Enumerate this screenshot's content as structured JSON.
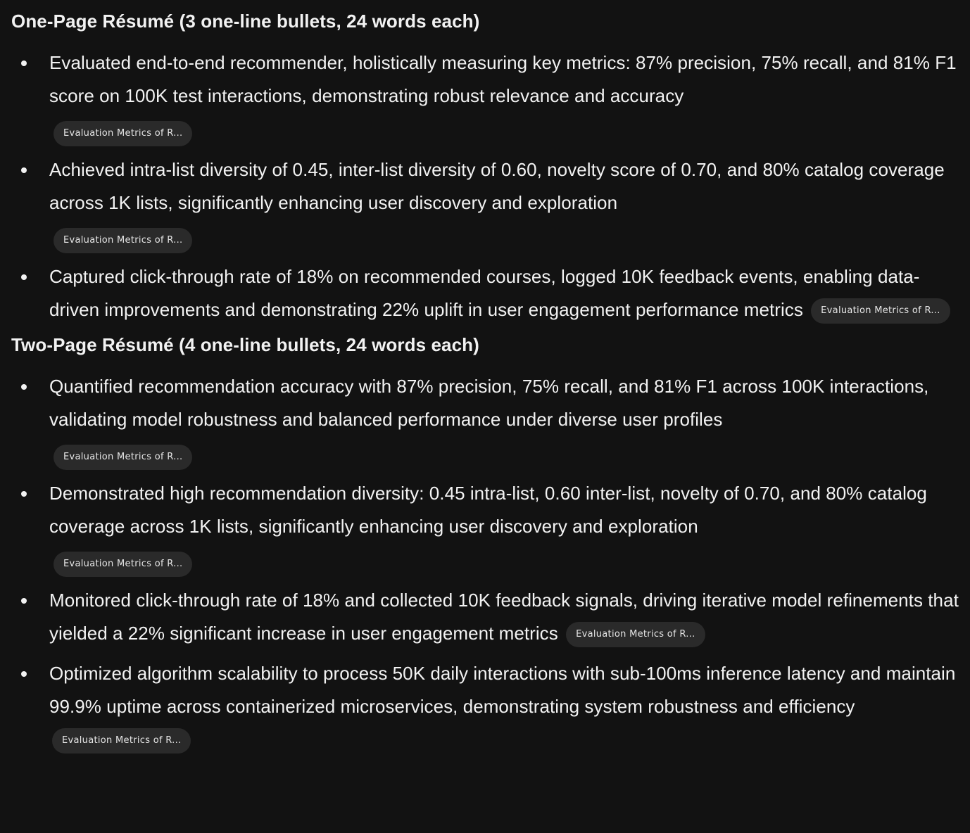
{
  "sections": [
    {
      "heading": "One-Page Résumé (3 one-line bullets, 24 words each)",
      "bullets": [
        {
          "text": "Evaluated end-to-end recommender, holistically measuring key metrics: 87% precision, 75% recall, and 81% F1 score on 100K test interactions, demonstrating robust relevance and accuracy",
          "chip": "Evaluation Metrics of R..."
        },
        {
          "text": "Achieved intra-list diversity of 0.45, inter-list diversity of 0.60, novelty score of 0.70, and 80% catalog coverage across 1K lists, significantly enhancing user discovery and exploration",
          "chip": "Evaluation Metrics of R..."
        },
        {
          "text": "Captured click-through rate of 18% on recommended courses, logged 10K feedback events, enabling data-driven improvements and demonstrating 22% uplift in user engagement performance metrics",
          "chip": "Evaluation Metrics of R..."
        }
      ]
    },
    {
      "heading": "Two-Page Résumé (4 one-line bullets, 24 words each)",
      "bullets": [
        {
          "text": "Quantified recommendation accuracy with 87% precision, 75% recall, and 81% F1 across 100K interactions, validating model robustness and balanced performance under diverse user profiles",
          "chip": "Evaluation Metrics of R..."
        },
        {
          "text": "Demonstrated high recommendation diversity: 0.45 intra-list, 0.60 inter-list, novelty of 0.70, and 80% catalog coverage across 1K lists, significantly enhancing user discovery and exploration",
          "chip": "Evaluation Metrics of R..."
        },
        {
          "text": "Monitored click-through rate of 18% and collected 10K feedback signals, driving iterative model refinements that yielded a 22% significant increase in user engagement metrics",
          "chip": "Evaluation Metrics of R..."
        },
        {
          "text": "Optimized algorithm scalability to process 50K daily interactions with sub-100ms inference latency and maintain 99.9% uptime across containerized microservices, demonstrating system robustness and efficiency",
          "chip": "Evaluation Metrics of R..."
        }
      ]
    }
  ]
}
